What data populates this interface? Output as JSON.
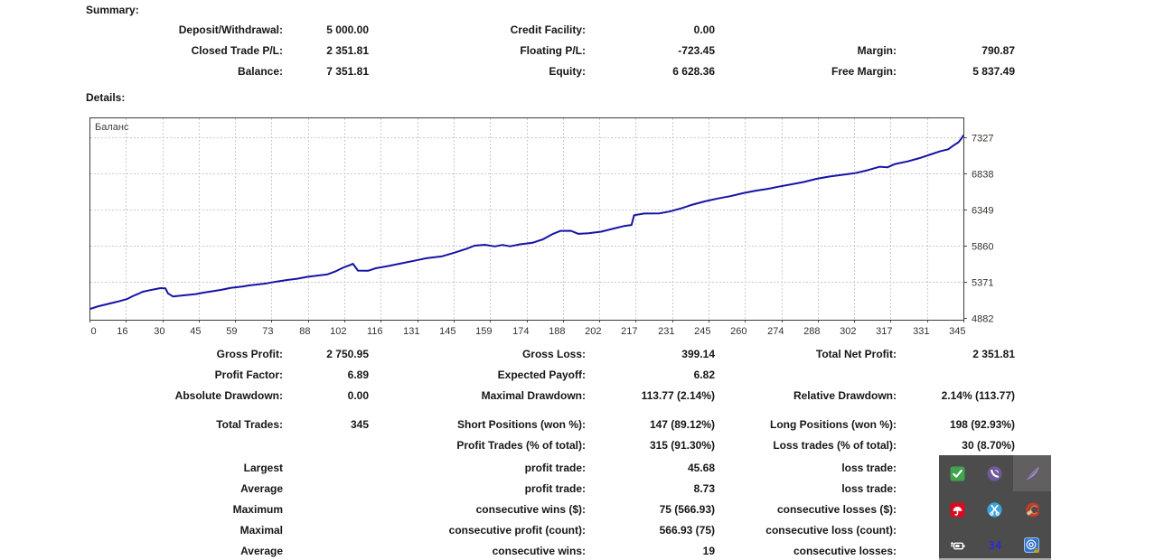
{
  "summary": {
    "heading": "Summary:",
    "rows": [
      [
        "Deposit/Withdrawal:",
        "5 000.00",
        "Credit Facility:",
        "0.00",
        "",
        ""
      ],
      [
        "Closed Trade P/L:",
        "2 351.81",
        "Floating P/L:",
        "-723.45",
        "Margin:",
        "790.87"
      ],
      [
        "Balance:",
        "7 351.81",
        "Equity:",
        "6 628.36",
        "Free Margin:",
        "5 837.49"
      ]
    ]
  },
  "details": {
    "heading": "Details:",
    "groups": [
      [
        [
          "Gross Profit:",
          "2 750.95",
          "Gross Loss:",
          "399.14",
          "Total Net Profit:",
          "2 351.81"
        ],
        [
          "Profit Factor:",
          "6.89",
          "Expected Payoff:",
          "6.82",
          "",
          ""
        ],
        [
          "Absolute Drawdown:",
          "0.00",
          "Maximal Drawdown:",
          "113.77 (2.14%)",
          "Relative Drawdown:",
          "2.14% (113.77)"
        ]
      ],
      [
        [
          "Total Trades:",
          "345",
          "Short Positions (won %):",
          "147 (89.12%)",
          "Long Positions (won %):",
          "198 (92.93%)"
        ],
        [
          "",
          "",
          "Profit Trades (% of total):",
          "315 (91.30%)",
          "Loss trades (% of total):",
          "30 (8.70%)"
        ]
      ],
      [
        [
          "Largest",
          "",
          "profit trade:",
          "45.68",
          "loss trade:",
          ""
        ],
        [
          "Average",
          "",
          "profit trade:",
          "8.73",
          "loss trade:",
          ""
        ],
        [
          "Maximum",
          "",
          "consecutive wins ($):",
          "75 (566.93)",
          "consecutive losses ($):",
          ""
        ],
        [
          "Maximal",
          "",
          "consecutive profit (count):",
          "566.93 (75)",
          "consecutive loss (count):",
          ""
        ],
        [
          "Average",
          "",
          "consecutive wins:",
          "19",
          "consecutive losses:",
          ""
        ]
      ]
    ]
  },
  "chart_data": {
    "type": "line",
    "title": "Баланс",
    "xlabel": "",
    "ylabel": "",
    "x_ticks": [
      0,
      16,
      30,
      45,
      59,
      73,
      88,
      102,
      116,
      131,
      145,
      159,
      174,
      188,
      202,
      217,
      231,
      245,
      260,
      274,
      288,
      302,
      317,
      331,
      345
    ],
    "y_ticks": [
      7327,
      6838,
      6349,
      5860,
      5371,
      4882
    ],
    "xlim": [
      0,
      345
    ],
    "ylim": [
      4845,
      7596
    ],
    "grid": true,
    "legend_position": "none",
    "line_color": "#1414a6",
    "series": [
      {
        "name": "Баланс",
        "points": [
          [
            0,
            5000
          ],
          [
            3,
            5035
          ],
          [
            6,
            5060
          ],
          [
            9,
            5085
          ],
          [
            12,
            5110
          ],
          [
            15,
            5140
          ],
          [
            17,
            5175
          ],
          [
            19,
            5205
          ],
          [
            21,
            5237
          ],
          [
            24,
            5258
          ],
          [
            26,
            5272
          ],
          [
            28,
            5285
          ],
          [
            30,
            5282
          ],
          [
            31,
            5215
          ],
          [
            33,
            5172
          ],
          [
            35,
            5180
          ],
          [
            38,
            5190
          ],
          [
            42,
            5205
          ],
          [
            45,
            5224
          ],
          [
            49,
            5245
          ],
          [
            52,
            5262
          ],
          [
            56,
            5290
          ],
          [
            60,
            5305
          ],
          [
            63,
            5322
          ],
          [
            67,
            5338
          ],
          [
            70,
            5350
          ],
          [
            74,
            5375
          ],
          [
            78,
            5395
          ],
          [
            82,
            5412
          ],
          [
            86,
            5438
          ],
          [
            90,
            5455
          ],
          [
            94,
            5472
          ],
          [
            97,
            5510
          ],
          [
            100,
            5560
          ],
          [
            103,
            5600
          ],
          [
            104,
            5615
          ],
          [
            106,
            5522
          ],
          [
            110,
            5520
          ],
          [
            113,
            5554
          ],
          [
            118,
            5585
          ],
          [
            123,
            5620
          ],
          [
            128,
            5655
          ],
          [
            133,
            5690
          ],
          [
            139,
            5715
          ],
          [
            144,
            5765
          ],
          [
            149,
            5820
          ],
          [
            152,
            5860
          ],
          [
            156,
            5872
          ],
          [
            160,
            5850
          ],
          [
            163,
            5870
          ],
          [
            166,
            5852
          ],
          [
            170,
            5878
          ],
          [
            175,
            5900
          ],
          [
            179,
            5945
          ],
          [
            183,
            6020
          ],
          [
            186,
            6060
          ],
          [
            190,
            6062
          ],
          [
            193,
            6020
          ],
          [
            197,
            6028
          ],
          [
            202,
            6050
          ],
          [
            207,
            6092
          ],
          [
            211,
            6125
          ],
          [
            214,
            6140
          ],
          [
            215,
            6272
          ],
          [
            219,
            6295
          ],
          [
            225,
            6298
          ],
          [
            229,
            6322
          ],
          [
            234,
            6370
          ],
          [
            238,
            6415
          ],
          [
            243,
            6460
          ],
          [
            248,
            6498
          ],
          [
            253,
            6530
          ],
          [
            258,
            6570
          ],
          [
            263,
            6605
          ],
          [
            268,
            6630
          ],
          [
            272,
            6658
          ],
          [
            277,
            6690
          ],
          [
            282,
            6722
          ],
          [
            287,
            6765
          ],
          [
            292,
            6795
          ],
          [
            297,
            6818
          ],
          [
            302,
            6840
          ],
          [
            307,
            6880
          ],
          [
            312,
            6928
          ],
          [
            315,
            6920
          ],
          [
            318,
            6965
          ],
          [
            323,
            7000
          ],
          [
            328,
            7048
          ],
          [
            332,
            7095
          ],
          [
            336,
            7140
          ],
          [
            339,
            7165
          ],
          [
            341,
            7215
          ],
          [
            343,
            7258
          ],
          [
            344,
            7300
          ],
          [
            345,
            7352
          ]
        ]
      }
    ]
  },
  "tray": {
    "badge_text": "34",
    "panel_color": "#4d4c4c",
    "hover_color": "#615f5f",
    "icons": [
      {
        "name": "green-check-icon",
        "color": "#3fa44e"
      },
      {
        "name": "viber-phone-icon",
        "color": "#6e5a96"
      },
      {
        "name": "feather-pen-icon",
        "color": "#9d7fc9"
      },
      {
        "name": "avira-antivirus-icon",
        "color": "#dd0a1e"
      },
      {
        "name": "scissors-app-icon",
        "color": "#39a5da"
      },
      {
        "name": "cleaner-brush-icon",
        "color": "#c63a2f"
      },
      {
        "name": "battery-power-icon",
        "color": "#ffffff"
      },
      {
        "name": "indicator-34-badge",
        "color": "#2b2bd0"
      },
      {
        "name": "network-alert-icon",
        "color": "#2e6fca"
      }
    ]
  }
}
